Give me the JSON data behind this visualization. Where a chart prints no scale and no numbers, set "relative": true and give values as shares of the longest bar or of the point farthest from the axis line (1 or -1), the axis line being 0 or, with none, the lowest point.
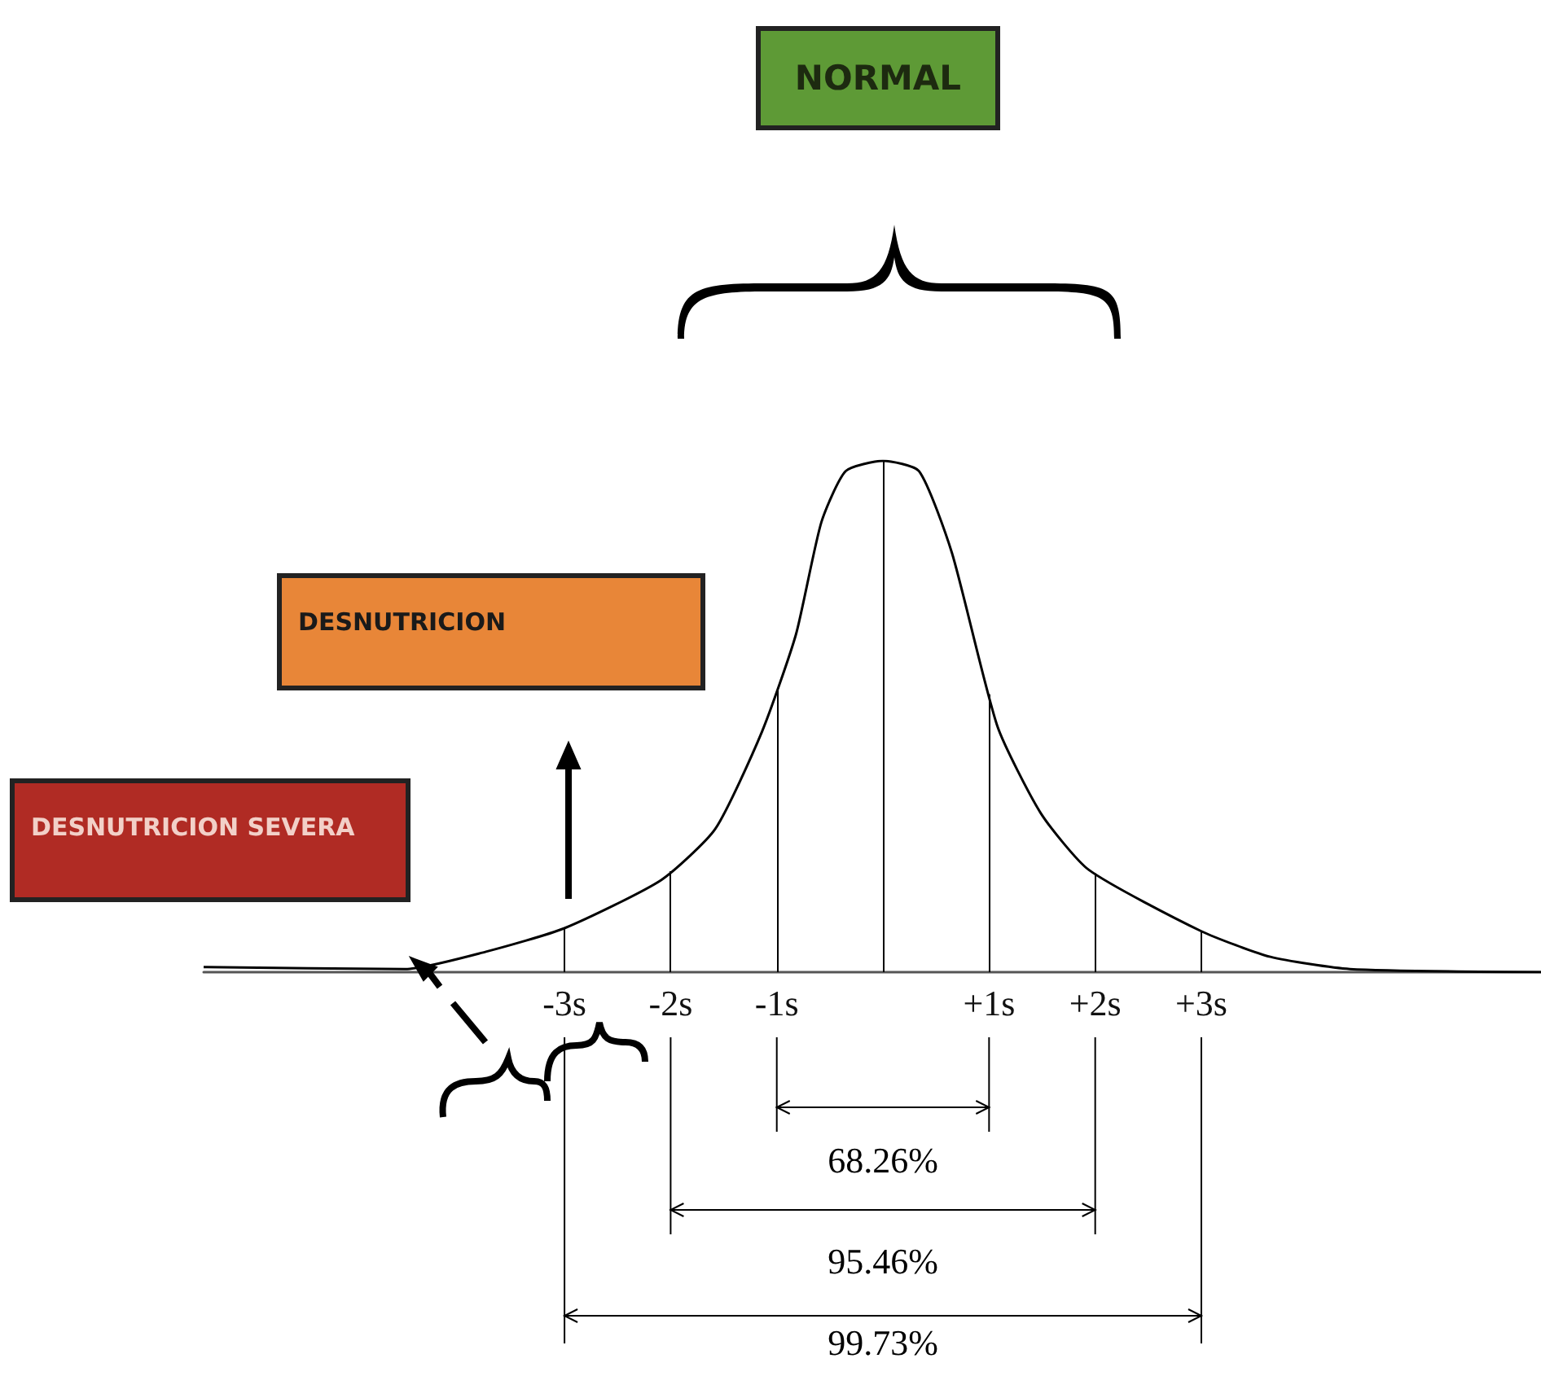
{
  "chart_data": {
    "type": "line",
    "relative": true,
    "color": "#000000",
    "marker": "none",
    "x": [
      -6.4,
      -4.5,
      -3.74,
      -3,
      -2.09,
      -1.58,
      -1.14,
      -0.82,
      -0.58,
      -0.35,
      0,
      0.34,
      0.65,
      1.08,
      1.49,
      1.94,
      3,
      3.65,
      4.4,
      6.2
    ],
    "values": [
      0.01,
      0.006,
      0.04,
      0.086,
      0.18,
      0.28,
      0.47,
      0.66,
      0.88,
      0.98,
      1,
      0.98,
      0.82,
      0.48,
      0.31,
      0.2,
      0.08,
      0.03,
      0.006,
      0
    ],
    "xlim": [
      -6.4,
      6.2
    ],
    "xticks": [
      {
        "value": -3,
        "label": "-3s"
      },
      {
        "value": -2,
        "label": "-2s"
      },
      {
        "value": -1,
        "label": "-1s"
      },
      {
        "value": 1,
        "label": "+1s"
      },
      {
        "value": 2,
        "label": "+2s"
      },
      {
        "value": 3,
        "label": "+3s"
      }
    ],
    "ref_lines": [
      {
        "axis": "x",
        "value": -3
      },
      {
        "axis": "x",
        "value": -2
      },
      {
        "axis": "x",
        "value": -1
      },
      {
        "axis": "x",
        "value": 0
      },
      {
        "axis": "x",
        "value": 1
      },
      {
        "axis": "x",
        "value": 2
      },
      {
        "axis": "x",
        "value": 3
      }
    ],
    "annotations": [
      "NORMAL",
      "DESNUTRICION",
      "DESNUTRICION SEVERA",
      "68.26%",
      "95.46%",
      "99.73%"
    ],
    "grid": false
  }
}
